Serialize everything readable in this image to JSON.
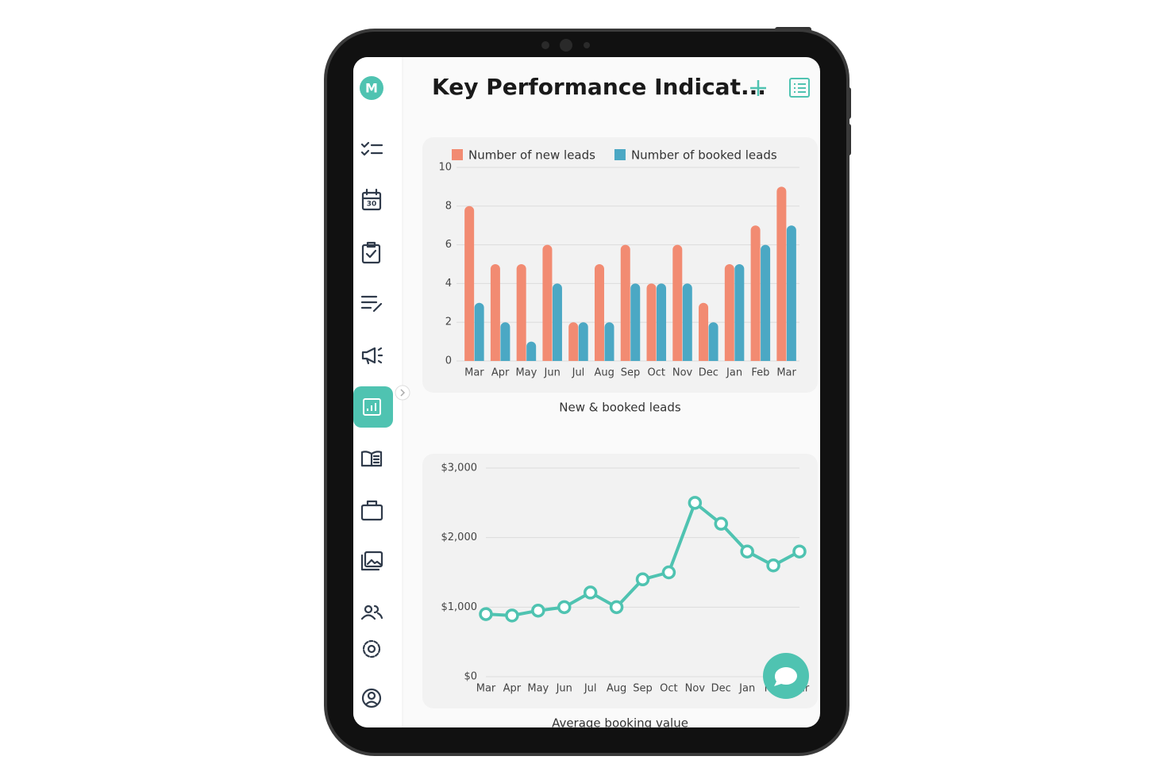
{
  "header": {
    "avatar": "M",
    "title": "Key Performance Indicat..."
  },
  "chart_data": [
    {
      "type": "bar",
      "title": "New & booked leads",
      "categories": [
        "Mar",
        "Apr",
        "May",
        "Jun",
        "Jul",
        "Aug",
        "Sep",
        "Oct",
        "Nov",
        "Dec",
        "Jan",
        "Feb",
        "Mar"
      ],
      "series": [
        {
          "name": "Number of new leads",
          "color": "#f28b72",
          "values": [
            8,
            5,
            5,
            6,
            2,
            5,
            6,
            4,
            6,
            3,
            5,
            7,
            9
          ]
        },
        {
          "name": "Number of booked leads",
          "color": "#4ba8c4",
          "values": [
            3,
            2,
            1,
            4,
            2,
            2,
            4,
            4,
            4,
            2,
            5,
            6,
            7
          ]
        }
      ],
      "ylim": [
        0,
        10
      ],
      "yticks": [
        0,
        2,
        4,
        6,
        8,
        10
      ],
      "grid": true,
      "legend": "top"
    },
    {
      "type": "line",
      "title": "Average booking value",
      "categories": [
        "Mar",
        "Apr",
        "May",
        "Jun",
        "Jul",
        "Aug",
        "Sep",
        "Oct",
        "Nov",
        "Dec",
        "Jan",
        "Feb",
        "Mar"
      ],
      "values": [
        900,
        880,
        950,
        1000,
        1210,
        1000,
        1400,
        1500,
        2500,
        2200,
        1800,
        1600,
        1800
      ],
      "color": "#4fc3b1",
      "ylim": [
        0,
        3000
      ],
      "yticks": [
        {
          "value": 0,
          "label": "$0"
        },
        {
          "value": 1000,
          "label": "$1,000"
        },
        {
          "value": 2000,
          "label": "$2,000"
        },
        {
          "value": 3000,
          "label": "$3,000"
        }
      ],
      "grid": true
    }
  ]
}
